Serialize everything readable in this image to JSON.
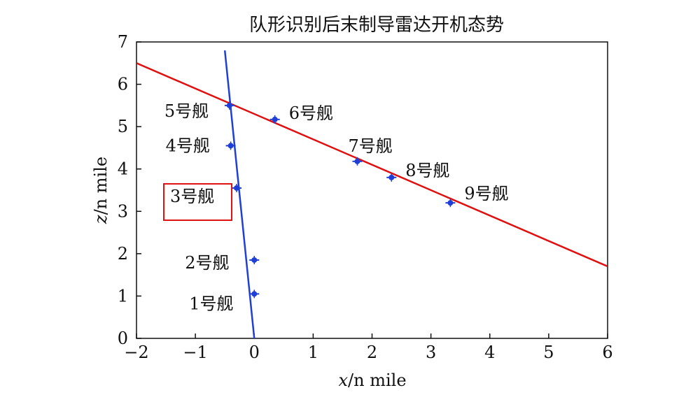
{
  "chart_data": {
    "type": "scatter",
    "title": "队形识别后末制导雷达开机态势",
    "xlabel_var": "x",
    "xlabel_unit": "/n mile",
    "ylabel_var": "z",
    "ylabel_unit": "/n mile",
    "xlim": [
      -2,
      6
    ],
    "ylim": [
      0,
      7
    ],
    "xticks": [
      "−2",
      "−1",
      "0",
      "1",
      "2",
      "3",
      "4",
      "5",
      "6"
    ],
    "yticks": [
      "0",
      "1",
      "2",
      "3",
      "4",
      "5",
      "6",
      "7"
    ],
    "grid": false,
    "ships": [
      {
        "label": "1号舰",
        "x": 0.0,
        "z": 1.05,
        "highlighted": false
      },
      {
        "label": "2号舰",
        "x": 0.0,
        "z": 1.85,
        "highlighted": false
      },
      {
        "label": "3号舰",
        "x": -0.3,
        "z": 3.55,
        "highlighted": true
      },
      {
        "label": "4号舰",
        "x": -0.4,
        "z": 4.55,
        "highlighted": false
      },
      {
        "label": "5号舰",
        "x": -0.42,
        "z": 5.5,
        "highlighted": false
      },
      {
        "label": "6号舰",
        "x": 0.35,
        "z": 5.17,
        "highlighted": false
      },
      {
        "label": "7号舰",
        "x": 1.75,
        "z": 4.18,
        "highlighted": false
      },
      {
        "label": "8号舰",
        "x": 2.33,
        "z": 3.8,
        "highlighted": false
      },
      {
        "label": "9号舰",
        "x": 3.33,
        "z": 3.2,
        "highlighted": false
      }
    ],
    "lines": [
      {
        "color": "#e01010",
        "from": {
          "x": -2,
          "z": 6.5
        },
        "to": {
          "x": 6,
          "z": 1.7
        }
      },
      {
        "color": "#1f3fd6",
        "from": {
          "x": -0.5,
          "z": 6.8
        },
        "to": {
          "x": 0.0,
          "z": 0.0
        }
      }
    ],
    "point_color": "#1f3fd6",
    "highlight_box_color": "#e01010"
  }
}
